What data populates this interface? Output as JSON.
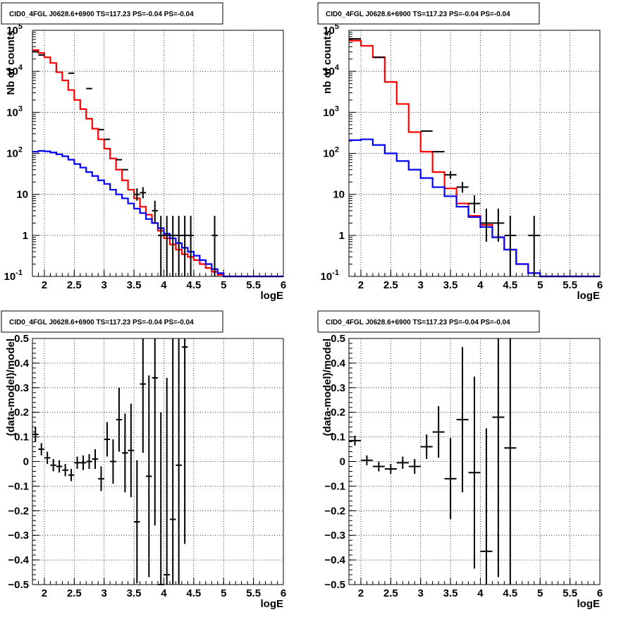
{
  "chart_data": [
    {
      "type": "line",
      "title": "CID0_4FGL J0628.6+6900 TS=117.23 PS=-0.04 PS=-0.04",
      "xlabel": "logE",
      "ylabel": "Nb of counts",
      "xlim": [
        1.8,
        6.0
      ],
      "ylim": [
        0.1,
        100000
      ],
      "yscale": "log",
      "grid": true,
      "xticks": [
        "2",
        "2.5",
        "3",
        "3.5",
        "4",
        "4.5",
        "5",
        "5.5",
        "6"
      ],
      "yticks": [
        "10^-1",
        "1",
        "10",
        "10^2",
        "10^3",
        "10^4",
        "10^5"
      ],
      "series": [
        {
          "kind": "step",
          "color": "#ff0000",
          "edges": [
            1.8,
            1.9,
            2.0,
            2.1,
            2.2,
            2.3,
            2.4,
            2.5,
            2.6,
            2.7,
            2.8,
            2.9,
            3.0,
            3.1,
            3.2,
            3.3,
            3.4,
            3.5,
            3.6,
            3.7,
            3.8,
            3.9,
            4.0,
            4.1,
            4.2,
            4.3,
            4.4,
            4.5,
            4.6,
            4.7,
            4.8,
            4.9,
            5.0,
            6.0
          ],
          "values": [
            33000,
            28000,
            22000,
            16000,
            9500,
            6000,
            3500,
            2000,
            1200,
            700,
            400,
            220,
            130,
            75,
            40,
            22,
            13,
            8,
            5,
            3.2,
            2.0,
            1.3,
            0.85,
            0.6,
            0.45,
            0.35,
            0.3,
            0.25,
            0.2,
            0.16,
            0.13,
            0.11,
            0.1
          ]
        },
        {
          "kind": "step",
          "color": "#0000ff",
          "edges": [
            1.8,
            1.9,
            2.0,
            2.1,
            2.2,
            2.3,
            2.4,
            2.5,
            2.6,
            2.7,
            2.8,
            2.9,
            3.0,
            3.1,
            3.2,
            3.3,
            3.4,
            3.5,
            3.6,
            3.7,
            3.8,
            3.9,
            4.0,
            4.1,
            4.2,
            4.3,
            4.4,
            4.5,
            4.6,
            4.7,
            4.8,
            4.9,
            5.0,
            6.0
          ],
          "values": [
            110,
            115,
            112,
            105,
            95,
            85,
            70,
            55,
            45,
            35,
            28,
            22,
            18,
            13,
            10,
            8,
            6,
            4.5,
            3.5,
            2.5,
            2.0,
            1.5,
            1.1,
            0.85,
            0.65,
            0.5,
            0.4,
            0.32,
            0.25,
            0.2,
            0.15,
            0.12,
            0.1
          ]
        },
        {
          "kind": "points",
          "color": "#000000",
          "x": [
            1.85,
            1.95,
            2.45,
            2.75,
            2.95,
            3.05,
            3.25,
            3.35,
            3.55,
            3.65,
            3.85,
            3.95,
            4.05,
            4.15,
            4.25,
            4.35,
            4.45,
            4.85
          ],
          "y": [
            30000,
            25000,
            9000,
            3800,
            380,
            220,
            70,
            40,
            10,
            11,
            4,
            1,
            1,
            1,
            1,
            1,
            1,
            1
          ],
          "yerr_lo": [
            0,
            0,
            0,
            0,
            0,
            0,
            0,
            0,
            3,
            3,
            2,
            0.95,
            0.95,
            0.95,
            0.95,
            0.95,
            0.95,
            0.95
          ],
          "yerr_hi": [
            0,
            0,
            0,
            0,
            0,
            0,
            0,
            0,
            4,
            4,
            3,
            2,
            2,
            2,
            2,
            2,
            2,
            2
          ],
          "xerr": 0.05
        }
      ]
    },
    {
      "type": "line",
      "title": "CID0_4FGL J0628.6+6900 TS=117.23 PS=-0.04 PS=-0.04",
      "xlabel": "logE",
      "ylabel": "nb of counts",
      "xlim": [
        1.8,
        6.0
      ],
      "ylim": [
        0.1,
        100000
      ],
      "yscale": "log",
      "grid": true,
      "xticks": [
        "2",
        "2.5",
        "3",
        "3.5",
        "4",
        "4.5",
        "5",
        "5.5",
        "6"
      ],
      "yticks": [
        "10^-1",
        "1",
        "10",
        "10^2",
        "10^3",
        "10^4",
        "10^5"
      ],
      "series": [
        {
          "kind": "step",
          "color": "#ff0000",
          "edges": [
            1.8,
            2.0,
            2.2,
            2.4,
            2.6,
            2.8,
            3.0,
            3.2,
            3.4,
            3.6,
            3.8,
            4.0,
            4.2,
            4.4,
            4.6,
            4.8,
            5.0,
            6.0
          ],
          "values": [
            56000,
            42000,
            22000,
            5500,
            1600,
            330,
            110,
            35,
            14,
            6,
            3,
            1.8,
            0.9,
            0.45,
            0.2,
            0.12,
            0.1
          ]
        },
        {
          "kind": "step",
          "color": "#0000ff",
          "edges": [
            1.8,
            2.0,
            2.2,
            2.4,
            2.6,
            2.8,
            3.0,
            3.2,
            3.4,
            3.6,
            3.8,
            4.0,
            4.2,
            4.4,
            4.6,
            4.8,
            5.0,
            6.0
          ],
          "values": [
            210,
            220,
            160,
            100,
            65,
            40,
            25,
            15,
            9,
            5,
            2.8,
            1.6,
            0.9,
            0.45,
            0.2,
            0.12,
            0.1
          ]
        },
        {
          "kind": "points",
          "color": "#000000",
          "x": [
            1.9,
            2.3,
            3.1,
            3.3,
            3.5,
            3.7,
            3.9,
            4.1,
            4.3,
            4.5,
            4.9
          ],
          "y": [
            62000,
            22000,
            350,
            110,
            30,
            15,
            6,
            2,
            2,
            1,
            1
          ],
          "yerr_lo": [
            0,
            0,
            0,
            0,
            6,
            4,
            2.5,
            1.3,
            1.3,
            0.95,
            0.95
          ],
          "yerr_hi": [
            0,
            0,
            0,
            0,
            7,
            5,
            3.5,
            2.5,
            2.5,
            2,
            2
          ],
          "xerr": 0.1
        }
      ]
    },
    {
      "type": "scatter",
      "title": "CID0_4FGL J0628.6+6900 TS=117.23 PS=-0.04 PS=-0.04",
      "xlabel": "logE",
      "ylabel": "(data-model)/model",
      "xlim": [
        1.8,
        6.0
      ],
      "ylim": [
        -0.5,
        0.5
      ],
      "grid": true,
      "xticks": [
        "2",
        "2.5",
        "3",
        "3.5",
        "4",
        "4.5",
        "5",
        "5.5",
        "6"
      ],
      "yticks": [
        "-0.5",
        "-0.4",
        "-0.3",
        "-0.2",
        "-0.1",
        "0",
        "0.1",
        "0.2",
        "0.3",
        "0.4",
        "0.5"
      ],
      "series": [
        {
          "kind": "points",
          "color": "#000000",
          "x": [
            1.85,
            1.95,
            2.05,
            2.15,
            2.25,
            2.35,
            2.45,
            2.55,
            2.65,
            2.75,
            2.85,
            2.95,
            3.05,
            3.15,
            3.25,
            3.35,
            3.45,
            3.55,
            3.65,
            3.75,
            3.85,
            3.95,
            4.05,
            4.15,
            4.25,
            4.35
          ],
          "y": [
            0.11,
            0.05,
            0.015,
            -0.015,
            -0.02,
            -0.035,
            -0.055,
            -0.005,
            -0.005,
            0.0,
            0.01,
            -0.07,
            0.09,
            0.0,
            0.17,
            0.035,
            0.045,
            -0.245,
            0.315,
            -0.06,
            0.34,
            -0.5,
            -0.46,
            -0.235,
            -0.015,
            0.465
          ],
          "yerr": [
            0.03,
            0.025,
            0.025,
            0.025,
            0.025,
            0.025,
            0.025,
            0.025,
            0.03,
            0.03,
            0.04,
            0.05,
            0.07,
            0.09,
            0.13,
            0.16,
            0.19,
            0.25,
            0.28,
            0.41,
            0.6,
            0.7,
            0.8,
            0.8,
            0.8,
            0.8
          ],
          "xerr": 0.05
        }
      ]
    },
    {
      "type": "scatter",
      "title": "CID0_4FGL J0628.6+6900 TS=117.23 PS=-0.04 PS=-0.04",
      "xlabel": "logE",
      "ylabel": "(data-model)/model",
      "xlim": [
        1.8,
        6.0
      ],
      "ylim": [
        -0.5,
        0.5
      ],
      "grid": true,
      "xticks": [
        "2",
        "2.5",
        "3",
        "3.5",
        "4",
        "4.5",
        "5",
        "5.5",
        "6"
      ],
      "yticks": [
        "-0.5",
        "-0.4",
        "-0.3",
        "-0.2",
        "-0.1",
        "0",
        "0.1",
        "0.2",
        "0.3",
        "0.4",
        "0.5"
      ],
      "series": [
        {
          "kind": "points",
          "color": "#000000",
          "x": [
            1.9,
            2.1,
            2.3,
            2.5,
            2.7,
            2.9,
            3.1,
            3.3,
            3.5,
            3.7,
            3.9,
            4.1,
            4.3,
            4.5
          ],
          "y": [
            0.085,
            0.005,
            -0.02,
            -0.03,
            -0.005,
            -0.02,
            0.06,
            0.12,
            -0.07,
            0.17,
            -0.045,
            -0.365,
            0.18,
            0.055
          ],
          "yerr": [
            0.02,
            0.02,
            0.02,
            0.02,
            0.025,
            0.03,
            0.05,
            0.105,
            0.165,
            0.295,
            0.39,
            0.5,
            0.65,
            0.65
          ],
          "xerr": 0.1
        }
      ]
    }
  ]
}
